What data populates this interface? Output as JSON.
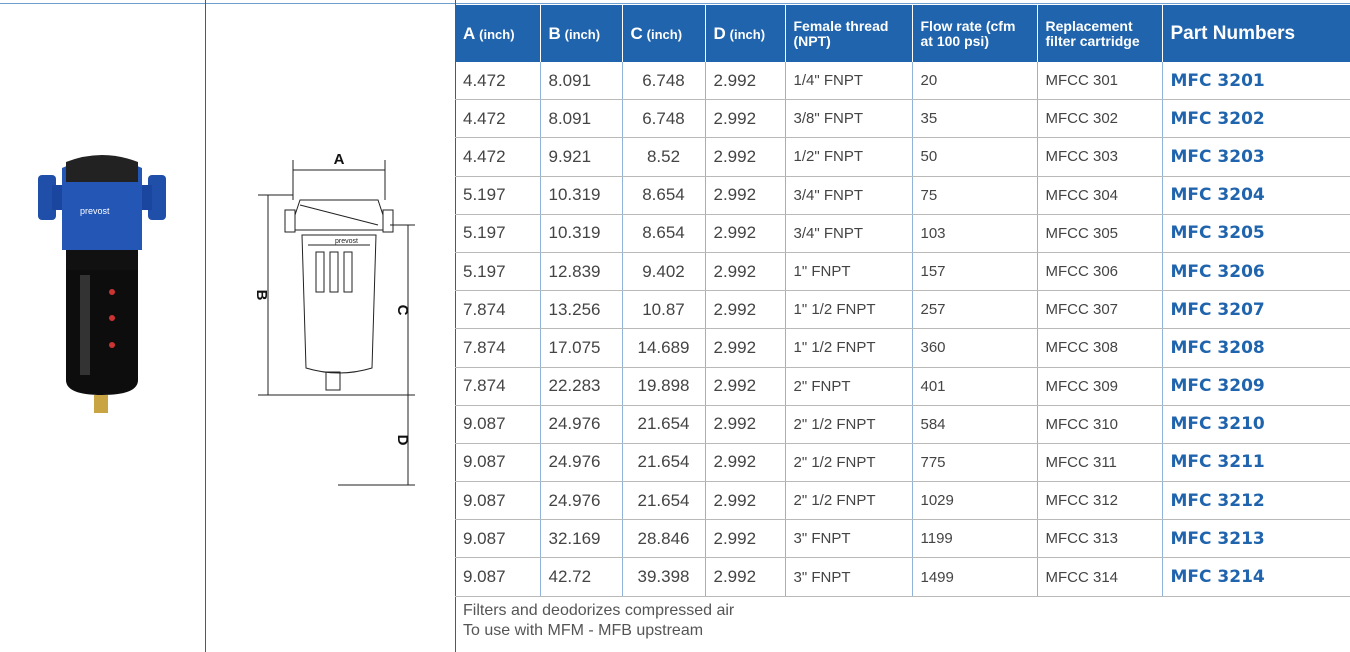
{
  "diagram": {
    "labels": [
      "A",
      "B",
      "C",
      "D"
    ],
    "brand": "prevost"
  },
  "table": {
    "headers": [
      {
        "label": "A",
        "unit": "(inch)"
      },
      {
        "label": "B",
        "unit": "(inch)"
      },
      {
        "label": "C",
        "unit": "(inch)"
      },
      {
        "label": "D",
        "unit": "(inch)"
      },
      {
        "label": "Female thread (NPT)"
      },
      {
        "label": "Flow rate (cfm at 100 psi)"
      },
      {
        "label": "Replacement filter cartridge"
      },
      {
        "label": "Part Numbers"
      }
    ],
    "rows": [
      [
        4.472,
        8.091,
        6.748,
        2.992,
        "1/4\" FNPT",
        20,
        "MFCC 301",
        "MFC 3201"
      ],
      [
        4.472,
        8.091,
        6.748,
        2.992,
        "3/8\" FNPT",
        35,
        "MFCC 302",
        "MFC 3202"
      ],
      [
        4.472,
        9.921,
        8.52,
        2.992,
        "1/2\" FNPT",
        50,
        "MFCC 303",
        "MFC 3203"
      ],
      [
        5.197,
        10.319,
        8.654,
        2.992,
        "3/4\" FNPT",
        75,
        "MFCC 304",
        "MFC 3204"
      ],
      [
        5.197,
        10.319,
        8.654,
        2.992,
        "3/4\" FNPT",
        103,
        "MFCC 305",
        "MFC 3205"
      ],
      [
        5.197,
        12.839,
        9.402,
        2.992,
        "1\" FNPT",
        157,
        "MFCC 306",
        "MFC 3206"
      ],
      [
        7.874,
        13.256,
        10.87,
        2.992,
        "1\" 1/2 FNPT",
        257,
        "MFCC 307",
        "MFC 3207"
      ],
      [
        7.874,
        17.075,
        14.689,
        2.992,
        "1\" 1/2 FNPT",
        360,
        "MFCC 308",
        "MFC 3208"
      ],
      [
        7.874,
        22.283,
        19.898,
        2.992,
        "2\" FNPT",
        401,
        "MFCC 309",
        "MFC 3209"
      ],
      [
        9.087,
        24.976,
        21.654,
        2.992,
        "2\" 1/2 FNPT",
        584,
        "MFCC 310",
        "MFC 3210"
      ],
      [
        9.087,
        24.976,
        21.654,
        2.992,
        "2\" 1/2 FNPT",
        775,
        "MFCC 311",
        "MFC 3211"
      ],
      [
        9.087,
        24.976,
        21.654,
        2.992,
        "2\" 1/2 FNPT",
        1029,
        "MFCC 312",
        "MFC 3212"
      ],
      [
        9.087,
        32.169,
        28.846,
        2.992,
        "3\" FNPT",
        1199,
        "MFCC 313",
        "MFC 3213"
      ],
      [
        9.087,
        42.72,
        39.398,
        2.992,
        "3\" FNPT",
        1499,
        "MFCC 314",
        "MFC 3214"
      ]
    ],
    "notes": [
      "Filters and deodorizes compressed air",
      "To use with MFM - MFB upstream"
    ]
  }
}
